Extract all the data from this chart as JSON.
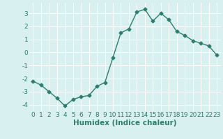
{
  "xlabel": "Humidex (Indice chaleur)",
  "x": [
    0,
    1,
    2,
    3,
    4,
    5,
    6,
    7,
    8,
    9,
    10,
    11,
    12,
    13,
    14,
    15,
    16,
    17,
    18,
    19,
    20,
    21,
    22,
    23
  ],
  "y": [
    -2.2,
    -2.5,
    -3.0,
    -3.5,
    -4.1,
    -3.6,
    -3.4,
    -3.3,
    -2.6,
    -2.3,
    -0.4,
    1.5,
    1.8,
    3.1,
    3.3,
    2.4,
    3.0,
    2.5,
    1.6,
    1.3,
    0.9,
    0.7,
    0.5,
    -0.2
  ],
  "line_color": "#2e7d6e",
  "marker": "D",
  "marker_size": 2.5,
  "bg_color": "#d8f0ef",
  "grid_color": "#ffffff",
  "tick_color": "#2e7d6e",
  "label_color": "#2e7d6e",
  "ylim": [
    -4.5,
    3.8
  ],
  "yticks": [
    -4,
    -3,
    -2,
    -1,
    0,
    1,
    2,
    3
  ],
  "xlim": [
    -0.5,
    23.5
  ],
  "xticks": [
    0,
    1,
    2,
    3,
    4,
    5,
    6,
    7,
    8,
    9,
    10,
    11,
    12,
    13,
    14,
    15,
    16,
    17,
    18,
    19,
    20,
    21,
    22,
    23
  ],
  "xlabel_fontsize": 7.5,
  "tick_fontsize": 6.5,
  "line_width": 1.0
}
